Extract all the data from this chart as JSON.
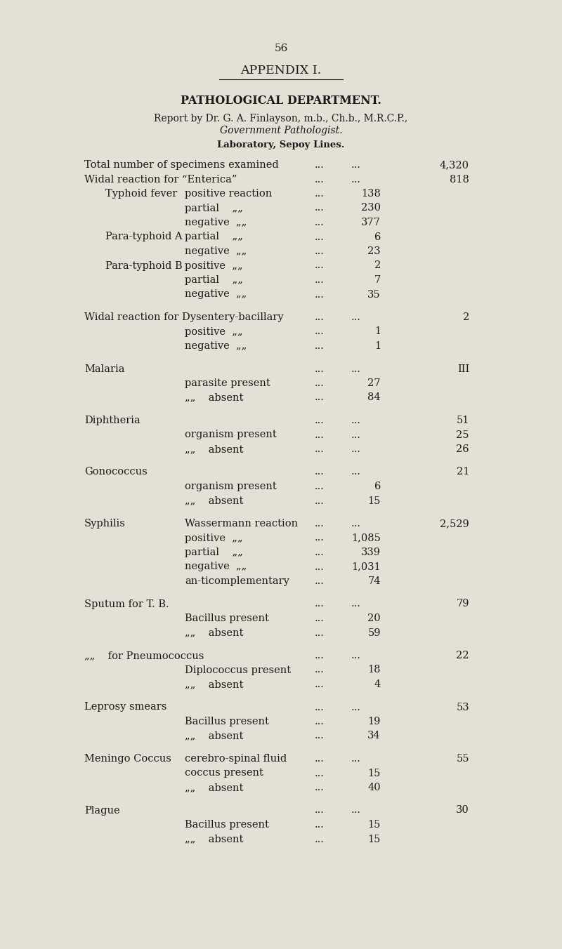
{
  "page_number": "56",
  "appendix_title": "APPENDIX I.",
  "section_title": "PATHOLOGICAL DEPARTMENT.",
  "report_by_line1": "Report by Dr. G. A. Finlayson, m.b., Ch.b., M.R.C.P.,",
  "report_by_line2": "Government Pathologist.",
  "laboratory": "Laboratory, Sepoy Lines.",
  "bg_color": "#e5e0d5",
  "text_color": "#1a1a1a",
  "lines": [
    {
      "type": "main",
      "col1": "Total number of specimens examined",
      "col2": "",
      "d1": true,
      "d2": true,
      "num2": "",
      "num3": "4,320"
    },
    {
      "type": "main",
      "col1": "Widal reaction for “Enterica”",
      "col2": "",
      "d1": true,
      "d2": true,
      "num2": "",
      "num3": "818"
    },
    {
      "type": "sub",
      "col1": "Typhoid fever",
      "col2": "positive reaction",
      "d1": true,
      "d2": false,
      "num2": "138",
      "num3": ""
    },
    {
      "type": "sub",
      "col1": "",
      "col2": "partial    „„",
      "d1": true,
      "d2": false,
      "num2": "230",
      "num3": ""
    },
    {
      "type": "sub",
      "col1": "",
      "col2": "negative  „„",
      "d1": true,
      "d2": false,
      "num2": "377",
      "num3": ""
    },
    {
      "type": "sub",
      "col1": "Para-typhoid A",
      "col2": "partial    „„",
      "d1": true,
      "d2": false,
      "num2": "6",
      "num3": ""
    },
    {
      "type": "sub",
      "col1": "",
      "col2": "negative  „„",
      "d1": true,
      "d2": false,
      "num2": "23",
      "num3": ""
    },
    {
      "type": "sub",
      "col1": "Para-typhoid B",
      "col2": "positive  „„",
      "d1": true,
      "d2": false,
      "num2": "2",
      "num3": ""
    },
    {
      "type": "sub",
      "col1": "",
      "col2": "partial    „„",
      "d1": true,
      "d2": false,
      "num2": "7",
      "num3": ""
    },
    {
      "type": "sub",
      "col1": "",
      "col2": "negative  „„",
      "d1": true,
      "d2": false,
      "num2": "35",
      "num3": ""
    },
    {
      "type": "main",
      "col1": "Widal reaction for Dysentery-bacillary",
      "col2": "",
      "d1": true,
      "d2": true,
      "num2": "",
      "num3": "2"
    },
    {
      "type": "sub",
      "col1": "",
      "col2": "positive  „„",
      "d1": true,
      "d2": false,
      "num2": "1",
      "num3": ""
    },
    {
      "type": "sub",
      "col1": "",
      "col2": "negative  „„",
      "d1": true,
      "d2": false,
      "num2": "1",
      "num3": ""
    },
    {
      "type": "main",
      "col1": "Malaria",
      "col2": "",
      "d1": true,
      "d2": true,
      "num2": "",
      "num3": "III"
    },
    {
      "type": "sub",
      "col1": "",
      "col2": "parasite present",
      "d1": true,
      "d2": false,
      "num2": "27",
      "num3": ""
    },
    {
      "type": "sub",
      "col1": "",
      "col2": "„„    absent",
      "d1": true,
      "d2": false,
      "num2": "84",
      "num3": ""
    },
    {
      "type": "main",
      "col1": "Diphtheria",
      "col2": "",
      "d1": true,
      "d2": true,
      "num2": "",
      "num3": "51"
    },
    {
      "type": "sub",
      "col1": "",
      "col2": "organism present",
      "d1": true,
      "d2": true,
      "num2": "",
      "num3": "25"
    },
    {
      "type": "sub",
      "col1": "",
      "col2": "„„    absent",
      "d1": true,
      "d2": true,
      "num2": "",
      "num3": "26"
    },
    {
      "type": "main",
      "col1": "Gonococcus",
      "col2": "",
      "d1": true,
      "d2": true,
      "num2": "",
      "num3": "21"
    },
    {
      "type": "sub",
      "col1": "",
      "col2": "organism present",
      "d1": true,
      "d2": false,
      "num2": "6",
      "num3": ""
    },
    {
      "type": "sub",
      "col1": "",
      "col2": "„„    absent",
      "d1": true,
      "d2": false,
      "num2": "15",
      "num3": ""
    },
    {
      "type": "main",
      "col1": "Syphilis",
      "col2": "Wassermann reaction",
      "d1": true,
      "d2": true,
      "num2": "",
      "num3": "2,529"
    },
    {
      "type": "sub",
      "col1": "",
      "col2": "positive  „„",
      "d1": true,
      "d2": false,
      "num2": "1,085",
      "num3": ""
    },
    {
      "type": "sub",
      "col1": "",
      "col2": "partial    „„",
      "d1": true,
      "d2": false,
      "num2": "339",
      "num3": ""
    },
    {
      "type": "sub",
      "col1": "",
      "col2": "negative  „„",
      "d1": true,
      "d2": false,
      "num2": "1,031",
      "num3": ""
    },
    {
      "type": "sub",
      "col1": "",
      "col2": "an-ticomplementary",
      "d1": true,
      "d2": false,
      "num2": "74",
      "num3": ""
    },
    {
      "type": "main",
      "col1": "Sputum for T. B.",
      "col2": "",
      "d1": true,
      "d2": true,
      "num2": "",
      "num3": "79"
    },
    {
      "type": "sub",
      "col1": "",
      "col2": "Bacillus present",
      "d1": true,
      "d2": false,
      "num2": "20",
      "num3": ""
    },
    {
      "type": "sub",
      "col1": "",
      "col2": "„„    absent",
      "d1": true,
      "d2": false,
      "num2": "59",
      "num3": ""
    },
    {
      "type": "main",
      "col1": "„„    for Pneumococcus",
      "col2": "",
      "d1": true,
      "d2": true,
      "num2": "",
      "num3": "22"
    },
    {
      "type": "sub",
      "col1": "",
      "col2": "Diplococcus present",
      "d1": true,
      "d2": false,
      "num2": "18",
      "num3": ""
    },
    {
      "type": "sub",
      "col1": "",
      "col2": "„„    absent",
      "d1": true,
      "d2": false,
      "num2": "4",
      "num3": ""
    },
    {
      "type": "main",
      "col1": "Leprosy smears",
      "col2": "",
      "d1": true,
      "d2": true,
      "num2": "",
      "num3": "53"
    },
    {
      "type": "sub",
      "col1": "",
      "col2": "Bacillus present",
      "d1": true,
      "d2": false,
      "num2": "19",
      "num3": ""
    },
    {
      "type": "sub",
      "col1": "",
      "col2": "„„    absent",
      "d1": true,
      "d2": false,
      "num2": "34",
      "num3": ""
    },
    {
      "type": "main",
      "col1": "Meningo Coccus",
      "col2": "cerebro-spinal fluid",
      "d1": true,
      "d2": true,
      "num2": "",
      "num3": "55"
    },
    {
      "type": "sub",
      "col1": "",
      "col2": "coccus present",
      "d1": true,
      "d2": false,
      "num2": "15",
      "num3": ""
    },
    {
      "type": "sub",
      "col1": "",
      "col2": "„„    absent",
      "d1": true,
      "d2": false,
      "num2": "40",
      "num3": ""
    },
    {
      "type": "main",
      "col1": "Plague",
      "col2": "",
      "d1": true,
      "d2": true,
      "num2": "",
      "num3": "30"
    },
    {
      "type": "sub",
      "col1": "",
      "col2": "Bacillus present",
      "d1": true,
      "d2": false,
      "num2": "15",
      "num3": ""
    },
    {
      "type": "sub",
      "col1": "",
      "col2": "„„    absent",
      "d1": true,
      "d2": false,
      "num2": "15",
      "num3": ""
    }
  ]
}
